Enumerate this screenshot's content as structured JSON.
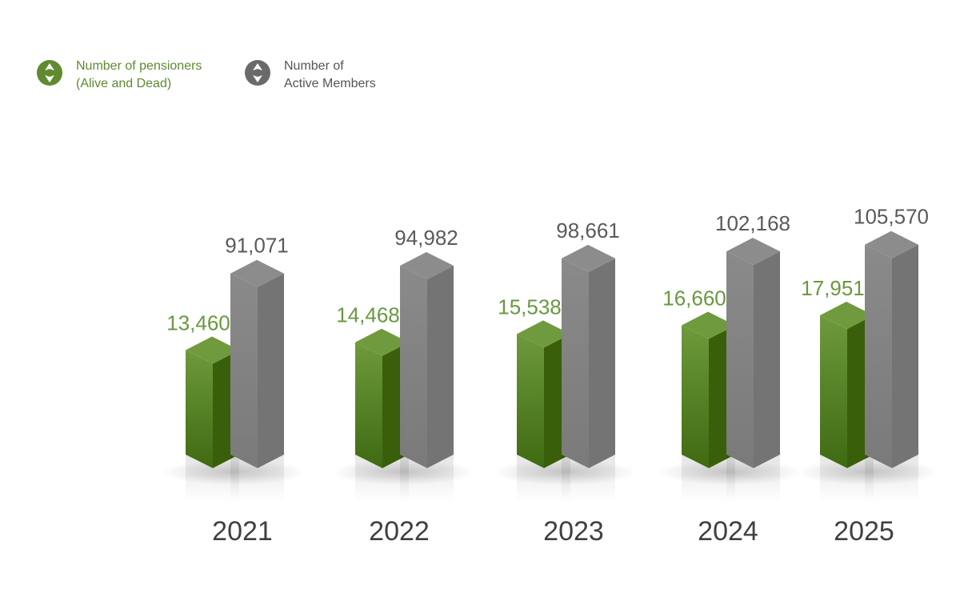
{
  "colors": {
    "pensioners": "#5f8a2f",
    "pensioners_dark": "#3a5f0a",
    "pensioners_text": "#6a9840",
    "members": "#8e8e8e",
    "members_dark": "#747474",
    "members_text": "#5a5a5a",
    "year_text": "#404040",
    "legend_member_text": "#555555"
  },
  "legend": [
    {
      "label": "Number of pensioners\n(Alive and Dead)",
      "icon": "green-diamond-badge-icon"
    },
    {
      "label": "Number of\nActive Members",
      "icon": "gray-diamond-badge-icon"
    }
  ],
  "chart_data": {
    "type": "bar",
    "categories": [
      "2021",
      "2022",
      "2023",
      "2024",
      "2025"
    ],
    "series": [
      {
        "name": "Number of pensioners (Alive and Dead)",
        "values": [
          13460,
          14468,
          15538,
          16660,
          17951
        ]
      },
      {
        "name": "Number of Active Members",
        "values": [
          91071,
          94982,
          98661,
          102168,
          105570
        ]
      }
    ],
    "value_labels": [
      [
        "13,460",
        "14,468",
        "15,538",
        "16,660",
        "17,951"
      ],
      [
        "91,071",
        "94,982",
        "98,661",
        "102,168",
        "105,570"
      ]
    ],
    "title": "",
    "xlabel": "",
    "ylabel": "",
    "grid": false,
    "legend_position": "top-left",
    "style": "3d-columns"
  }
}
